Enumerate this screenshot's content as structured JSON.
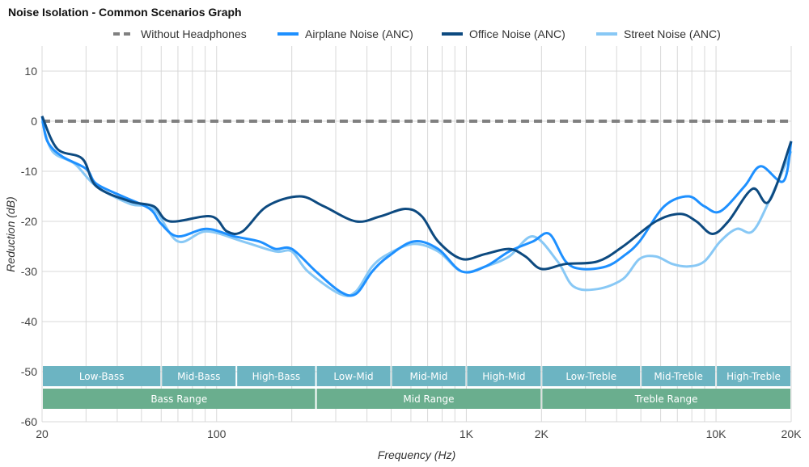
{
  "chart_data": {
    "type": "line",
    "title": "Noise Isolation - Common Scenarios Graph",
    "xlabel": "Frequency (Hz)",
    "ylabel": "Reduction (dB)",
    "x_scale": "log",
    "xlim": [
      20,
      20000
    ],
    "ylim": [
      -60,
      15
    ],
    "grid": true,
    "legend_position": "top",
    "x_ticks": [
      {
        "v": 20,
        "label": "20"
      },
      {
        "v": 100,
        "label": "100"
      },
      {
        "v": 1000,
        "label": "1K"
      },
      {
        "v": 2000,
        "label": "2K"
      },
      {
        "v": 10000,
        "label": "10K"
      },
      {
        "v": 20000,
        "label": "20K"
      }
    ],
    "y_ticks": [
      10,
      0,
      -10,
      -20,
      -30,
      -40,
      -50,
      -60
    ],
    "series": [
      {
        "name": "Without Headphones",
        "color": "#808080",
        "dashed": true,
        "x": [
          20,
          20000
        ],
        "y": [
          0,
          0
        ]
      },
      {
        "name": "Airplane Noise (ANC)",
        "color": "#1e90ff",
        "x": [
          20,
          21,
          24,
          30,
          33,
          42,
          54,
          60,
          70,
          91,
          118,
          148,
          172,
          200,
          250,
          312,
          361,
          420,
          487,
          616,
          771,
          959,
          1193,
          1485,
          1850,
          2150,
          2500,
          2900,
          3630,
          4240,
          4940,
          6200,
          7740,
          8980,
          10400,
          13000,
          15100,
          18600,
          20000
        ],
        "y": [
          1,
          -4,
          -7,
          -9.5,
          -12.5,
          -15,
          -17.5,
          -20.5,
          -23,
          -21.5,
          -23,
          -24,
          -25.5,
          -25.5,
          -30,
          -34,
          -34.5,
          -30,
          -27,
          -24,
          -25.5,
          -30,
          -29,
          -26,
          -24,
          -22.5,
          -28,
          -29.5,
          -29,
          -27,
          -24,
          -17,
          -15,
          -17,
          -18,
          -13,
          -9,
          -12,
          -4
        ]
      },
      {
        "name": "Office Noise (ANC)",
        "color": "#0d4a80",
        "x": [
          20,
          23,
          29,
          33,
          45,
          56,
          65,
          95,
          110,
          127,
          159,
          215,
          269,
          361,
          452,
          571,
          664,
          771,
          959,
          1193,
          1485,
          1724,
          2000,
          2500,
          3355,
          4240,
          5740,
          7180,
          8340,
          9670,
          11200,
          14000,
          16300,
          20000
        ],
        "y": [
          1,
          -5.5,
          -7.5,
          -13,
          -16,
          -17,
          -20,
          -19,
          -22,
          -22,
          -17,
          -15,
          -17,
          -20,
          -19,
          -17.5,
          -19,
          -24,
          -27.5,
          -26.5,
          -25.5,
          -27,
          -29.5,
          -28.5,
          -28,
          -25,
          -20,
          -18.5,
          -20,
          -22.5,
          -20,
          -13.5,
          -16,
          -4
        ]
      },
      {
        "name": "Street Noise (ANC)",
        "color": "#88c8f5",
        "x": [
          20,
          22,
          27,
          33,
          45,
          56,
          70,
          91,
          127,
          172,
          200,
          232,
          312,
          361,
          420,
          487,
          616,
          771,
          959,
          1193,
          1485,
          1850,
          2320,
          2690,
          3355,
          4240,
          4940,
          5740,
          6680,
          7740,
          8980,
          10400,
          12100,
          14000,
          16300,
          20000
        ],
        "y": [
          0,
          -6,
          -8.5,
          -13,
          -16.5,
          -17.5,
          -24,
          -22,
          -24,
          -26,
          -26,
          -30,
          -34.5,
          -34,
          -29,
          -26.5,
          -24.5,
          -26,
          -30,
          -29,
          -27,
          -23,
          -28,
          -33,
          -33.5,
          -31.5,
          -27.5,
          -27,
          -28.5,
          -29,
          -28,
          -24,
          -21.5,
          -22,
          -16,
          -6
        ]
      }
    ],
    "bands": [
      {
        "label": "Low-Bass",
        "from": 20,
        "to": 60
      },
      {
        "label": "Mid-Bass",
        "from": 60,
        "to": 120
      },
      {
        "label": "High-Bass",
        "from": 120,
        "to": 250
      },
      {
        "label": "Low-Mid",
        "from": 250,
        "to": 500
      },
      {
        "label": "Mid-Mid",
        "from": 500,
        "to": 1000
      },
      {
        "label": "High-Mid",
        "from": 1000,
        "to": 2000
      },
      {
        "label": "Low-Treble",
        "from": 2000,
        "to": 5000
      },
      {
        "label": "Mid-Treble",
        "from": 5000,
        "to": 10000
      },
      {
        "label": "High-Treble",
        "from": 10000,
        "to": 20000
      }
    ],
    "ranges": [
      {
        "label": "Bass Range",
        "from": 20,
        "to": 250
      },
      {
        "label": "Mid Range",
        "from": 250,
        "to": 2000
      },
      {
        "label": "Treble Range",
        "from": 2000,
        "to": 20000
      }
    ],
    "band_color": "#6cb4c2",
    "range_color": "#6aae8e"
  }
}
